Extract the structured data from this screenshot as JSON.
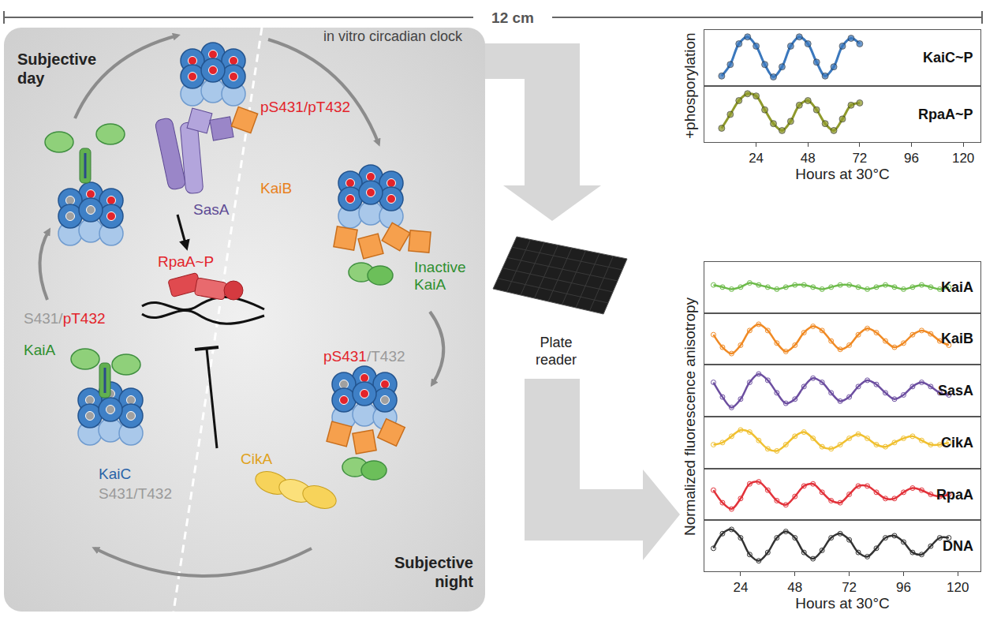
{
  "diagram": {
    "scale_bar": "12 cm",
    "heading": "in vitro circadian clock",
    "phases": [
      "Subjective day",
      "Subjective night"
    ],
    "states": [
      {
        "parts": [
          "pS431/pT432"
        ]
      },
      {
        "parts": [
          "pS431",
          "/T432"
        ]
      },
      {
        "parts": [
          "S431/",
          "pT432"
        ]
      },
      {
        "parts": [
          "S431/T432"
        ]
      }
    ],
    "labels": {
      "kaic": "KaiC",
      "kaia": "KaiA",
      "kaib": "KaiB",
      "sasa": "SasA",
      "cika": "CikA",
      "inactive_kaia": "Inactive KaiA",
      "rpaa": "RpaA~P"
    },
    "instrument": "Plate reader"
  },
  "chart_data": [
    {
      "type": "line",
      "ylabel": "+phosporylation",
      "xlabel": "Hours at 30°C",
      "x": [
        8,
        12,
        16,
        20,
        24,
        28,
        32,
        36,
        40,
        44,
        48,
        52,
        56,
        60,
        64,
        68,
        72
      ],
      "xlim": [
        0,
        128
      ],
      "xticks": [
        24,
        48,
        72,
        96,
        120
      ],
      "ylim": [
        -0.1,
        1.1
      ],
      "yticks": [],
      "tick_labels": "x",
      "grid": false,
      "marker": "circle",
      "series": [
        {
          "name": "KaiC~P",
          "color": "#3b78bd",
          "values": [
            0.1,
            0.35,
            0.8,
            0.95,
            0.75,
            0.35,
            0.08,
            0.3,
            0.75,
            0.95,
            0.8,
            0.4,
            0.1,
            0.3,
            0.75,
            0.92,
            0.8
          ]
        },
        {
          "name": "RpaA~P",
          "color": "#8f9a2c",
          "values": [
            0.2,
            0.5,
            0.8,
            0.95,
            0.9,
            0.6,
            0.3,
            0.15,
            0.35,
            0.7,
            0.8,
            0.6,
            0.3,
            0.15,
            0.4,
            0.7,
            0.75
          ]
        }
      ]
    },
    {
      "type": "line",
      "ylabel": "Normalized fluorescence anisotropy",
      "xlabel": "Hours at 30°C",
      "x": [
        12,
        16,
        20,
        24,
        28,
        32,
        36,
        40,
        44,
        48,
        52,
        56,
        60,
        64,
        68,
        72,
        76,
        80,
        84,
        88,
        92,
        96,
        100,
        104,
        108,
        112,
        116
      ],
      "xlim": [
        8,
        130
      ],
      "xticks": [
        24,
        48,
        72,
        96,
        120
      ],
      "ylim": [
        -0.1,
        1.1
      ],
      "yticks": [],
      "tick_labels": "x",
      "grid": false,
      "marker": "circle-open",
      "series": [
        {
          "name": "KaiA",
          "color": "#6dbb4a",
          "values": [
            0.55,
            0.5,
            0.45,
            0.5,
            0.6,
            0.55,
            0.5,
            0.45,
            0.5,
            0.55,
            0.55,
            0.5,
            0.45,
            0.5,
            0.55,
            0.55,
            0.5,
            0.45,
            0.5,
            0.55,
            0.5,
            0.45,
            0.5,
            0.55,
            0.5,
            0.45,
            0.5
          ]
        },
        {
          "name": "KaiB",
          "color": "#f08a24",
          "values": [
            0.6,
            0.3,
            0.15,
            0.35,
            0.7,
            0.85,
            0.7,
            0.4,
            0.2,
            0.35,
            0.65,
            0.8,
            0.7,
            0.45,
            0.25,
            0.35,
            0.6,
            0.75,
            0.65,
            0.45,
            0.3,
            0.4,
            0.6,
            0.7,
            0.62,
            0.45,
            0.35
          ]
        },
        {
          "name": "SasA",
          "color": "#6c4ea0",
          "values": [
            0.7,
            0.35,
            0.1,
            0.3,
            0.7,
            0.9,
            0.75,
            0.45,
            0.2,
            0.3,
            0.6,
            0.8,
            0.7,
            0.45,
            0.25,
            0.35,
            0.6,
            0.75,
            0.65,
            0.45,
            0.3,
            0.4,
            0.6,
            0.7,
            0.6,
            0.45,
            0.4
          ]
        },
        {
          "name": "CikA",
          "color": "#f0c030",
          "values": [
            0.45,
            0.5,
            0.65,
            0.8,
            0.75,
            0.55,
            0.35,
            0.3,
            0.45,
            0.65,
            0.75,
            0.6,
            0.4,
            0.35,
            0.45,
            0.6,
            0.7,
            0.6,
            0.45,
            0.4,
            0.5,
            0.6,
            0.65,
            0.55,
            0.45,
            0.45,
            0.5
          ]
        },
        {
          "name": "RpaA",
          "color": "#e2323a",
          "values": [
            0.6,
            0.3,
            0.15,
            0.4,
            0.75,
            0.8,
            0.6,
            0.35,
            0.25,
            0.45,
            0.7,
            0.75,
            0.55,
            0.35,
            0.3,
            0.5,
            0.7,
            0.7,
            0.55,
            0.4,
            0.4,
            0.55,
            0.65,
            0.6,
            0.5,
            0.45,
            0.5
          ]
        },
        {
          "name": "DNA",
          "color": "#333333",
          "values": [
            0.45,
            0.8,
            0.9,
            0.7,
            0.3,
            0.15,
            0.35,
            0.7,
            0.85,
            0.7,
            0.35,
            0.2,
            0.4,
            0.7,
            0.8,
            0.65,
            0.35,
            0.25,
            0.45,
            0.7,
            0.75,
            0.6,
            0.35,
            0.3,
            0.5,
            0.7,
            0.7
          ]
        }
      ]
    }
  ]
}
